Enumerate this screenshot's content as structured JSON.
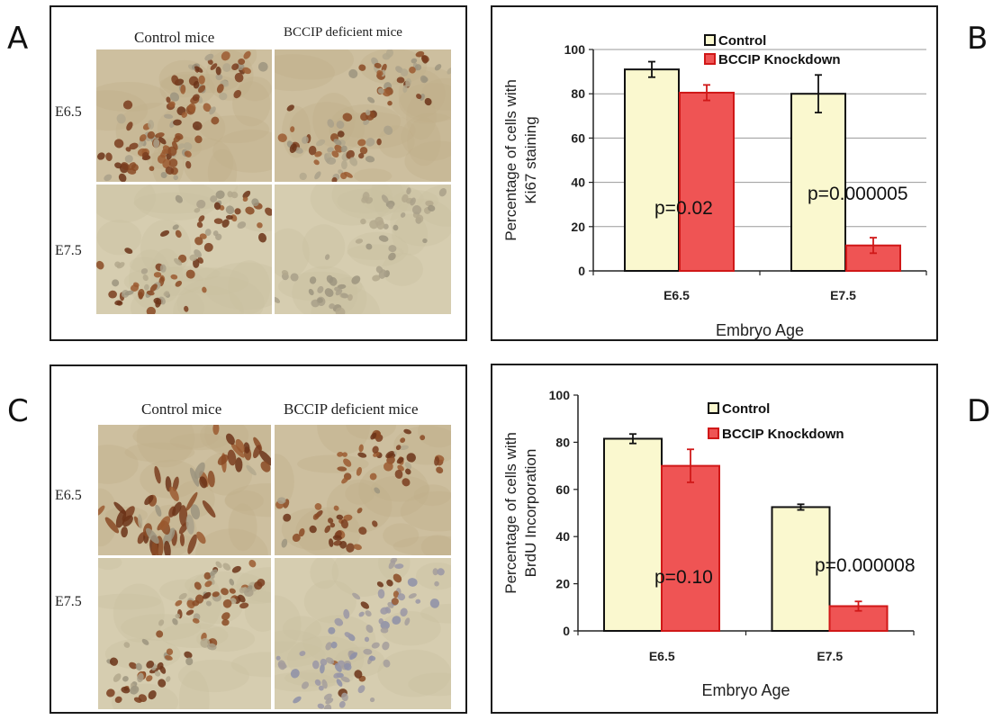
{
  "colors": {
    "control_fill": "#FAF8CF",
    "knockdown_fill": "#EF5454",
    "knockdown_stroke": "#D01818",
    "frame": "#1a1a1a",
    "stain_brown": "#8a4a25",
    "tissue_bg": "#cdbf9f"
  },
  "panel_letters": {
    "A": "A",
    "B": "B",
    "C": "C",
    "D": "D"
  },
  "panel_a": {
    "col_headers": [
      "Control mice",
      "BCCIP deficient mice"
    ],
    "row_labels": [
      "E6.5",
      "E7.5"
    ]
  },
  "panel_c": {
    "col_headers": [
      "Control mice",
      "BCCIP deficient  mice"
    ],
    "row_labels": [
      "E6.5",
      "E7.5"
    ]
  },
  "chart_data": [
    {
      "panel": "B",
      "type": "bar",
      "categories": [
        "E6.5",
        "E7.5"
      ],
      "series": [
        {
          "name": "Control",
          "values": [
            91,
            80
          ],
          "errors": [
            3.5,
            8.5
          ]
        },
        {
          "name": "BCCIP Knockdown",
          "values": [
            80.5,
            11.5
          ],
          "errors": [
            3.5,
            3.5
          ]
        }
      ],
      "annotations": [
        "p=0.02",
        "p=0.000005"
      ],
      "ylabel_lines": [
        "Percentage of cells with",
        "Ki67 staining"
      ],
      "xlabel": "Embryo Age",
      "yticks": [
        0,
        20,
        40,
        60,
        80,
        100
      ],
      "ylim": [
        0,
        100
      ],
      "grid": true,
      "legend_position": "top"
    },
    {
      "panel": "D",
      "type": "bar",
      "categories": [
        "E6.5",
        "E7.5"
      ],
      "series": [
        {
          "name": "Control",
          "values": [
            81.5,
            52.5
          ],
          "errors": [
            2,
            1.2
          ]
        },
        {
          "name": "BCCIP Knockdown",
          "values": [
            70,
            10.5
          ],
          "errors": [
            7,
            2
          ]
        }
      ],
      "annotations": [
        "p=0.10",
        "p=0.000008"
      ],
      "ylabel_lines": [
        "Percentage of cells with",
        "BrdU Incorporation"
      ],
      "xlabel": "Embryo  Age",
      "yticks": [
        0,
        20,
        40,
        60,
        80,
        100
      ],
      "ylim": [
        0,
        100
      ],
      "grid": false,
      "legend_position": "top"
    }
  ]
}
